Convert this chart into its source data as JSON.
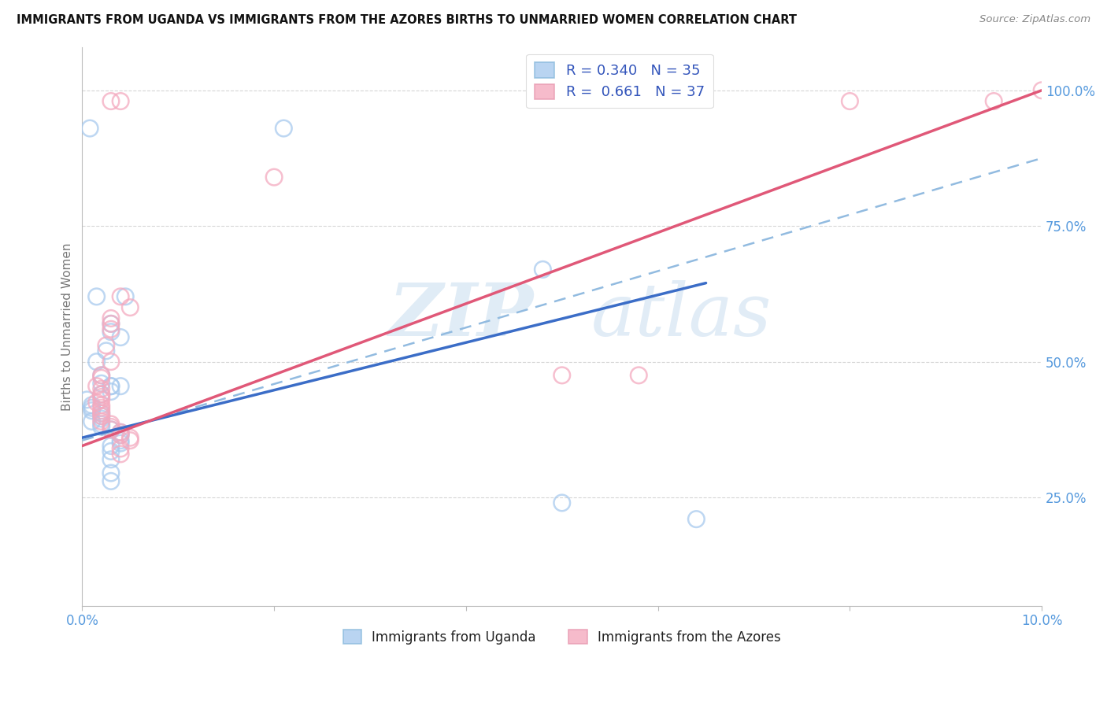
{
  "title": "IMMIGRANTS FROM UGANDA VS IMMIGRANTS FROM THE AZORES BIRTHS TO UNMARRIED WOMEN CORRELATION CHART",
  "source": "Source: ZipAtlas.com",
  "ylabel": "Births to Unmarried Women",
  "x_min": 0.0,
  "x_max": 0.1,
  "y_min": 0.05,
  "y_max": 1.08,
  "y_ticks": [
    0.25,
    0.5,
    0.75,
    1.0
  ],
  "y_tick_labels": [
    "25.0%",
    "50.0%",
    "75.0%",
    "100.0%"
  ],
  "legend_label_blue": "Immigrants from Uganda",
  "legend_label_pink": "Immigrants from the Azores",
  "blue_color": "#A8CAEE",
  "pink_color": "#F4AABF",
  "line_blue_color": "#3B6DC7",
  "line_pink_color": "#E05878",
  "dashed_line_color": "#92BBE0",
  "watermark_zip": "ZIP",
  "watermark_atlas": "atlas",
  "uganda_points": [
    [
      0.0008,
      0.93
    ],
    [
      0.0045,
      0.62
    ],
    [
      0.0015,
      0.62
    ],
    [
      0.003,
      0.57
    ],
    [
      0.003,
      0.555
    ],
    [
      0.004,
      0.545
    ],
    [
      0.0025,
      0.52
    ],
    [
      0.0015,
      0.5
    ],
    [
      0.002,
      0.475
    ],
    [
      0.002,
      0.46
    ],
    [
      0.003,
      0.455
    ],
    [
      0.003,
      0.455
    ],
    [
      0.004,
      0.455
    ],
    [
      0.003,
      0.445
    ],
    [
      0.002,
      0.44
    ],
    [
      0.0005,
      0.43
    ],
    [
      0.001,
      0.42
    ],
    [
      0.001,
      0.415
    ],
    [
      0.001,
      0.41
    ],
    [
      0.002,
      0.405
    ],
    [
      0.002,
      0.4
    ],
    [
      0.002,
      0.395
    ],
    [
      0.001,
      0.39
    ],
    [
      0.002,
      0.385
    ],
    [
      0.002,
      0.38
    ],
    [
      0.003,
      0.375
    ],
    [
      0.004,
      0.37
    ],
    [
      0.004,
      0.365
    ],
    [
      0.004,
      0.355
    ],
    [
      0.004,
      0.35
    ],
    [
      0.003,
      0.345
    ],
    [
      0.003,
      0.335
    ],
    [
      0.003,
      0.32
    ],
    [
      0.003,
      0.295
    ],
    [
      0.003,
      0.28
    ],
    [
      0.05,
      0.24
    ],
    [
      0.064,
      0.21
    ],
    [
      0.048,
      0.67
    ],
    [
      0.021,
      0.93
    ]
  ],
  "azores_points": [
    [
      0.003,
      0.98
    ],
    [
      0.004,
      0.98
    ],
    [
      0.08,
      0.98
    ],
    [
      0.095,
      0.98
    ],
    [
      0.02,
      0.84
    ],
    [
      0.004,
      0.62
    ],
    [
      0.005,
      0.6
    ],
    [
      0.003,
      0.58
    ],
    [
      0.003,
      0.57
    ],
    [
      0.003,
      0.56
    ],
    [
      0.0025,
      0.53
    ],
    [
      0.003,
      0.5
    ],
    [
      0.002,
      0.475
    ],
    [
      0.002,
      0.47
    ],
    [
      0.0015,
      0.455
    ],
    [
      0.002,
      0.45
    ],
    [
      0.002,
      0.44
    ],
    [
      0.002,
      0.435
    ],
    [
      0.002,
      0.43
    ],
    [
      0.0015,
      0.425
    ],
    [
      0.002,
      0.42
    ],
    [
      0.002,
      0.415
    ],
    [
      0.002,
      0.41
    ],
    [
      0.002,
      0.405
    ],
    [
      0.002,
      0.4
    ],
    [
      0.002,
      0.39
    ],
    [
      0.003,
      0.385
    ],
    [
      0.003,
      0.38
    ],
    [
      0.003,
      0.375
    ],
    [
      0.004,
      0.37
    ],
    [
      0.004,
      0.365
    ],
    [
      0.005,
      0.36
    ],
    [
      0.005,
      0.355
    ],
    [
      0.004,
      0.34
    ],
    [
      0.004,
      0.33
    ],
    [
      0.05,
      0.475
    ],
    [
      0.058,
      0.475
    ],
    [
      0.1,
      1.0
    ]
  ],
  "blue_trendline": [
    [
      0.0,
      0.36
    ],
    [
      0.065,
      0.645
    ]
  ],
  "pink_trendline": [
    [
      0.0,
      0.345
    ],
    [
      0.1,
      1.0
    ]
  ],
  "dashed_trendline": [
    [
      0.0,
      0.355
    ],
    [
      0.1,
      0.875
    ]
  ]
}
